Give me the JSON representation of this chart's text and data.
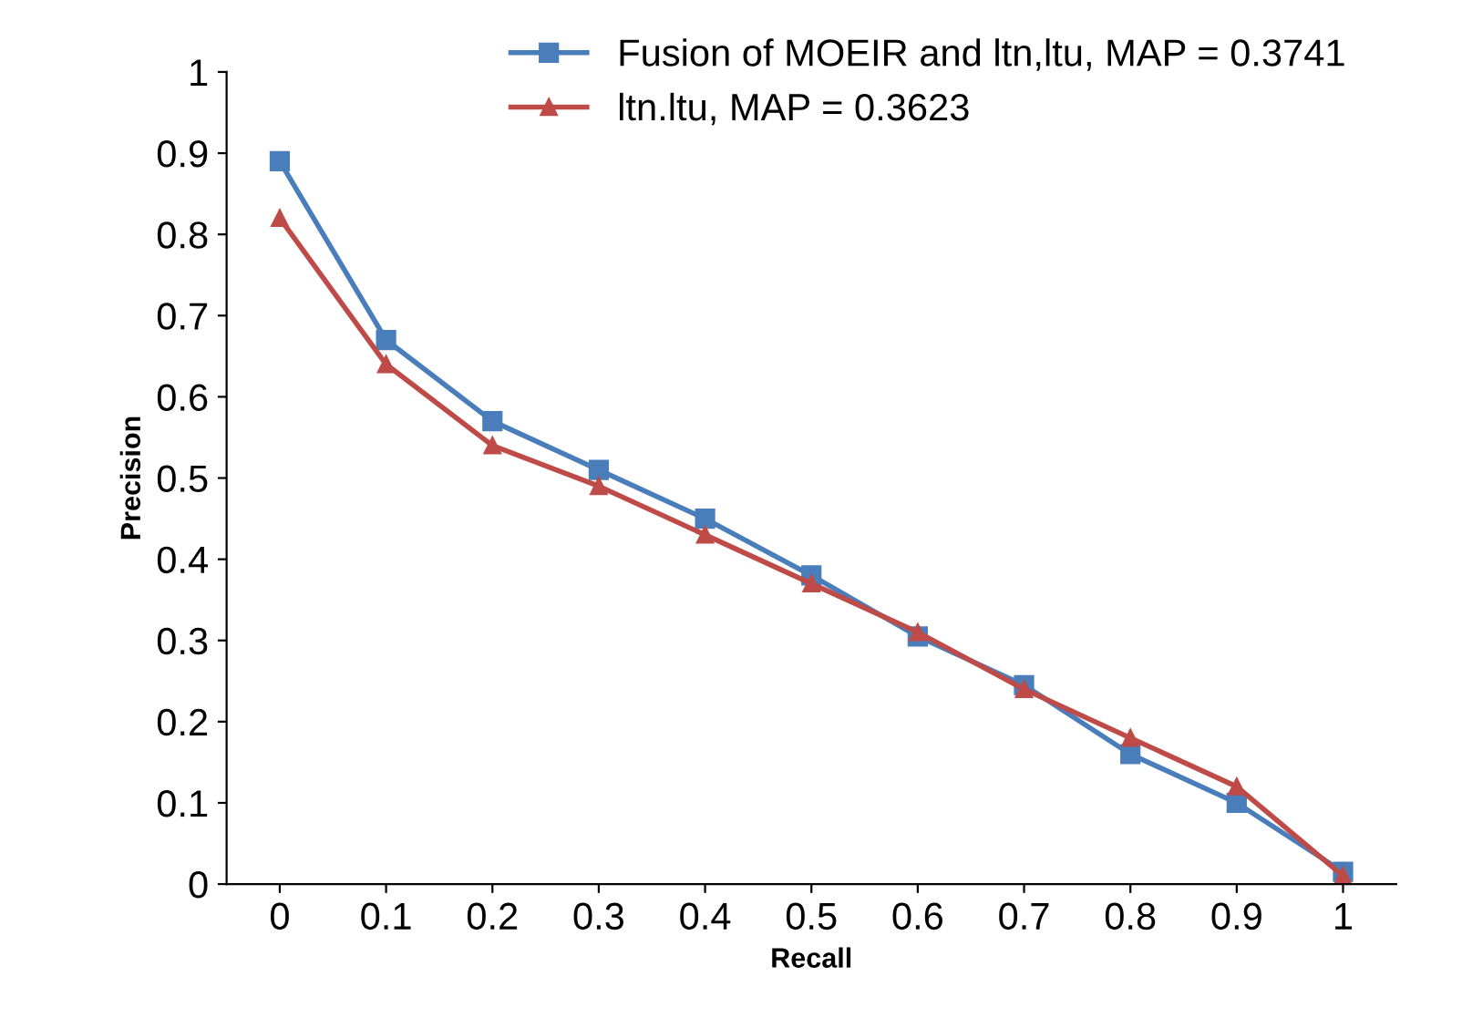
{
  "chart_data": {
    "type": "line",
    "xlabel": "Recall",
    "ylabel": "Precision",
    "categories": [
      "0",
      "0.1",
      "0.2",
      "0.3",
      "0.4",
      "0.5",
      "0.6",
      "0.7",
      "0.8",
      "0.9",
      "1"
    ],
    "series": [
      {
        "name": "Fusion of MOEIR and ltn,ltu, MAP = 0.3741",
        "color": "#4a7ebb",
        "marker": "square",
        "values": [
          0.89,
          0.67,
          0.57,
          0.51,
          0.45,
          0.38,
          0.305,
          0.245,
          0.16,
          0.1,
          0.015
        ]
      },
      {
        "name": "ltn.ltu, MAP = 0.3623",
        "color": "#be4b48",
        "marker": "triangle",
        "values": [
          0.82,
          0.64,
          0.54,
          0.49,
          0.43,
          0.37,
          0.31,
          0.24,
          0.18,
          0.12,
          0.01
        ]
      }
    ],
    "ylim": [
      0,
      1
    ],
    "yticks": [
      0,
      0.1,
      0.2,
      0.3,
      0.4,
      0.5,
      0.6,
      0.7,
      0.8,
      0.9,
      1
    ],
    "grid": false,
    "legend": "top",
    "line_style": "solid"
  }
}
